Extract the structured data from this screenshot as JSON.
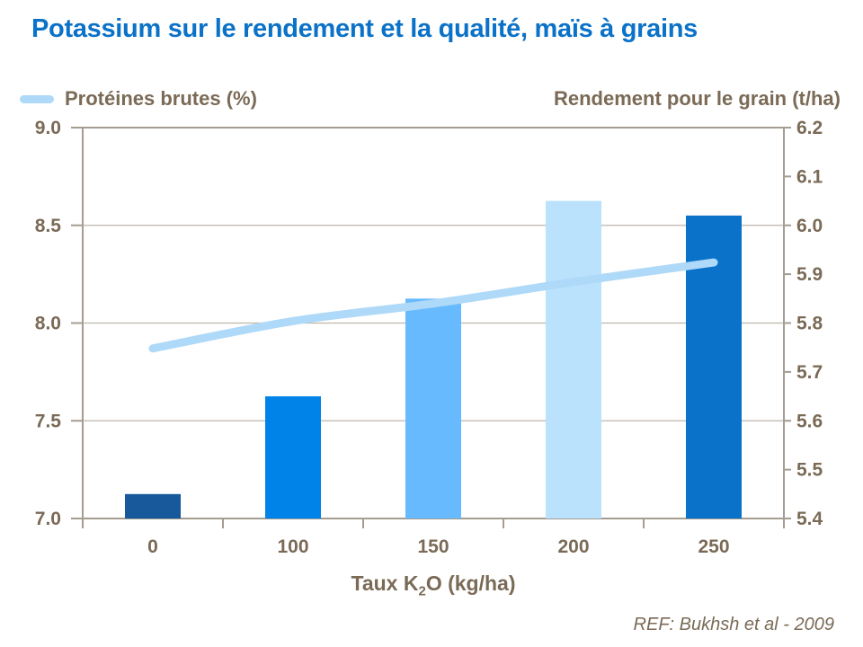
{
  "title": "Potassium sur le rendement et la qualité, maïs à grains",
  "legend": {
    "left_label": "Protéines brutes (%)",
    "right_label": "Rendement pour le grain (t/ha)"
  },
  "footer": {
    "ref": "REF:  Bukhsh et al - 2009"
  },
  "colors": {
    "title": "#0B72C8",
    "text": "#7A6A56",
    "axis": "#A59C92",
    "grid": "#BDB5AB",
    "line_series": "#AFD9F8"
  },
  "chart_data": {
    "type": "combo",
    "categories": [
      "0",
      "100",
      "150",
      "200",
      "250"
    ],
    "series": [
      {
        "name": "Rendement pour le grain (t/ha)",
        "type": "bar",
        "axis": "right",
        "values": [
          5.45,
          5.65,
          5.85,
          6.05,
          6.02
        ],
        "bar_colors": [
          "#17599B",
          "#0083E8",
          "#66BAFD",
          "#BAE2FD",
          "#0B72C9"
        ]
      },
      {
        "name": "Protéines brutes (%)",
        "type": "line",
        "axis": "left",
        "values": [
          7.87,
          8.01,
          8.1,
          8.21,
          8.31
        ],
        "color": "#AFD9F8"
      }
    ],
    "left_axis": {
      "label": "Protéines brutes (%)",
      "min": 7.0,
      "max": 9.0,
      "tick_step": 0.5,
      "tick_labels": [
        "7.0",
        "7.5",
        "8.0",
        "8.5",
        "9.0"
      ]
    },
    "right_axis": {
      "label": "Rendement pour le grain (t/ha)",
      "min": 5.4,
      "max": 6.2,
      "tick_step": 0.1,
      "tick_labels": [
        "5.4",
        "5.5",
        "5.6",
        "5.7",
        "5.8",
        "5.9",
        "6.0",
        "6.1",
        "6.2"
      ]
    },
    "gridlines_left_values": [
      7.5,
      8.0,
      8.5
    ],
    "xlabel": "Taux K2O (kg/ha)",
    "xlabel_parts": [
      "Taux K",
      "2",
      "O (kg/ha)"
    ],
    "legend_position": "top",
    "grid": "horizontal-only"
  }
}
